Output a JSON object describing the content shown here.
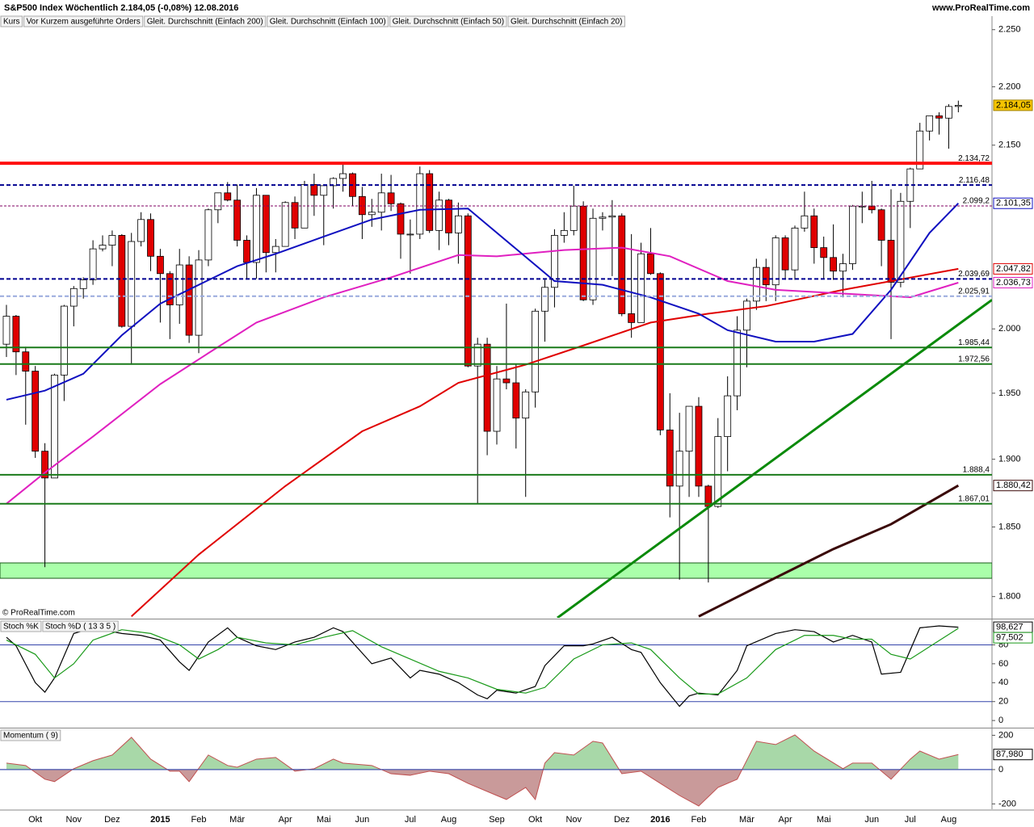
{
  "header": {
    "title": "S&P500 Index  Wöchentlich  2.184,05 (-0,08%)  12.08.2016",
    "site": "www.ProRealTime.com",
    "legend": [
      {
        "label": "Kurs",
        "color": "#1a7a1a"
      },
      {
        "label": "Vor Kurzem ausgeführte Orders",
        "color": "#e05a5a"
      }
    ]
  },
  "copyright": "© ProRealTime.com",
  "chart_data": [
    {
      "type": "candlestick",
      "categories": [
        null,
        null,
        null,
        "Okt",
        null,
        null,
        null,
        "Nov",
        null,
        null,
        null,
        "Dez",
        null,
        null,
        null,
        null,
        "2015",
        null,
        null,
        null,
        "Feb",
        null,
        null,
        null,
        "Mär",
        null,
        null,
        null,
        null,
        "Apr",
        null,
        null,
        null,
        "Mai",
        null,
        null,
        null,
        "Jun",
        null,
        null,
        null,
        null,
        "Jul",
        null,
        null,
        null,
        "Aug",
        null,
        null,
        null,
        null,
        "Sep",
        null,
        null,
        null,
        "Okt",
        null,
        null,
        null,
        "Nov",
        null,
        null,
        null,
        null,
        "Dez",
        null,
        null,
        null,
        "2016",
        null,
        null,
        null,
        "Feb",
        null,
        null,
        null,
        null,
        "Mär",
        null,
        null,
        null,
        "Apr",
        null,
        null,
        null,
        "Mai",
        null,
        null,
        null,
        null,
        "Jun",
        null,
        null,
        null,
        "Jul",
        null,
        null,
        null,
        "Aug",
        null
      ],
      "xlim": [
        -0.67,
        102.5
      ],
      "ylim": [
        1785,
        2262
      ],
      "log_scale": true,
      "yticks": [
        {
          "value": 2250,
          "label": "2.250"
        },
        {
          "value": 2200,
          "label": "2.200"
        },
        {
          "value": 2150,
          "label": "2.150"
        },
        {
          "value": 2000,
          "label": "2.000"
        },
        {
          "value": 1950,
          "label": "1.950"
        },
        {
          "value": 1900,
          "label": "1.900"
        },
        {
          "value": 1850,
          "label": "1.850"
        },
        {
          "value": 1800,
          "label": "1.800"
        }
      ],
      "open": [
        1988,
        2010,
        1982,
        1967,
        1906,
        1886,
        1964,
        2018,
        2032,
        2039,
        2064,
        2067,
        2075,
        2002,
        2070,
        2088,
        2058,
        2044,
        2019,
        2051,
        1995,
        2055,
        2096,
        2110,
        2104,
        2071,
        2053,
        2108,
        2061,
        2066,
        2102,
        2081,
        2117,
        2108,
        2116,
        2122,
        2126,
        2107,
        2092,
        2094,
        2110,
        2101,
        2076,
        2076,
        2126,
        2079,
        2104,
        2077,
        2091,
        1971,
        1988,
        1921,
        1961,
        1958,
        1931,
        1951,
        2014,
        2033,
        2075,
        2079,
        2099,
        2023,
        2089,
        2090,
        2091,
        2012,
        2005,
        2060,
        2044,
        1922,
        1880,
        1906,
        1940,
        1880,
        1865,
        1917,
        1948,
        1999,
        2022,
        2049,
        2035,
        2073,
        2047,
        2081,
        2091,
        2065,
        2057,
        2046,
        2052,
        2099,
        2099,
        2096,
        2071,
        2037,
        2103,
        2130,
        2162,
        2175,
        2173,
        2183
      ],
      "high": [
        2019,
        2011,
        1986,
        1971,
        1912,
        1965,
        2019,
        2034,
        2041,
        2071,
        2075,
        2079,
        2076,
        2077,
        2094,
        2093,
        2064,
        2046,
        2064,
        2058,
        2063,
        2097,
        2110,
        2119,
        2117,
        2075,
        2114,
        2108,
        2072,
        2103,
        2107,
        2120,
        2126,
        2117,
        2123,
        2134,
        2127,
        2115,
        2105,
        2126,
        2125,
        2102,
        2088,
        2132,
        2129,
        2111,
        2105,
        2102,
        2093,
        1993,
        1993,
        1971,
        2020,
        1973,
        1953,
        2016,
        2039,
        2080,
        2094,
        2116,
        2103,
        2097,
        2094,
        2104,
        2093,
        2076,
        2069,
        2081,
        2045,
        1950,
        1935,
        1940,
        1947,
        1881,
        1931,
        1963,
        2010,
        2024,
        2056,
        2056,
        2075,
        2075,
        2083,
        2111,
        2097,
        2074,
        2084,
        2060,
        2100,
        2111,
        2120,
        2097,
        2113,
        2110,
        2131,
        2169,
        2175,
        2178,
        2185,
        2188
      ],
      "low": [
        1978,
        1964,
        1926,
        1901,
        1821,
        1886,
        1944,
        2002,
        2024,
        2035,
        2062,
        2050,
        2001,
        1972,
        2066,
        2046,
        2005,
        1992,
        2004,
        1989,
        1981,
        2050,
        2085,
        2103,
        2066,
        2040,
        2040,
        2045,
        2045,
        2066,
        2072,
        2081,
        2091,
        2067,
        2097,
        2111,
        2099,
        2072,
        2082,
        2079,
        2095,
        2056,
        2044,
        2072,
        2077,
        2063,
        2067,
        2052,
        1970,
        1867,
        1903,
        1911,
        1953,
        1908,
        1872,
        1939,
        1990,
        2017,
        2069,
        2075,
        2022,
        2019,
        2079,
        2042,
        2010,
        1993,
        2005,
        2043,
        1918,
        1857,
        1812,
        1872,
        1872,
        1810,
        1864,
        1891,
        1937,
        1970,
        2015,
        2022,
        2022,
        2039,
        2039,
        2078,
        2052,
        2040,
        2039,
        2025,
        2047,
        2085,
        2093,
        2050,
        1992,
        2033,
        2081,
        2130,
        2154,
        2159,
        2147,
        2178
      ],
      "close": [
        2010,
        1982,
        1967,
        1906,
        1886,
        1964,
        2018,
        2032,
        2039,
        2064,
        2067,
        2075,
        2002,
        2070,
        2088,
        2058,
        2044,
        2019,
        2051,
        1995,
        2055,
        2096,
        2110,
        2104,
        2071,
        2053,
        2108,
        2061,
        2066,
        2102,
        2081,
        2117,
        2108,
        2116,
        2122,
        2126,
        2107,
        2092,
        2094,
        2110,
        2101,
        2076,
        2076,
        2126,
        2079,
        2104,
        2077,
        2091,
        1971,
        1988,
        1921,
        1961,
        1958,
        1931,
        1951,
        2014,
        2033,
        2075,
        2079,
        2099,
        2023,
        2089,
        2090,
        2091,
        2012,
        2005,
        2060,
        2044,
        1922,
        1880,
        1906,
        1940,
        1880,
        1865,
        1917,
        1948,
        1999,
        2022,
        2049,
        2035,
        2073,
        2047,
        2081,
        2091,
        2065,
        2057,
        2046,
        2052,
        2099,
        2099,
        2096,
        2071,
        2037,
        2103,
        2130,
        2162,
        2175,
        2173,
        2183,
        2184
      ],
      "up_color": "#ffffff",
      "down_color": "#e00000",
      "last_label": "2.184,05",
      "last_color": "#f5c400",
      "series": [
        {
          "name": "Gleit. Durchschnitt (Einfach 200)",
          "color": "#3a0808",
          "x": [
            72,
            79,
            86,
            92,
            99
          ],
          "values": [
            1786,
            1810,
            1834,
            1852,
            1880.42
          ],
          "end_label": "1.880,42"
        },
        {
          "name": "Gleit. Durchschnitt (Einfach 100)",
          "color": "#e00000",
          "x": [
            13,
            20,
            29,
            37,
            43,
            47,
            54,
            60,
            67,
            73,
            79,
            87,
            99
          ],
          "values": [
            1786,
            1830,
            1880,
            1921,
            1940,
            1958,
            1972,
            1987,
            2005,
            2012,
            2018,
            2031,
            2047.82
          ],
          "end_label": "2.047,82"
        },
        {
          "name": "Gleit. Durchschnitt (Einfach 50)",
          "color": "#e020c0",
          "x": [
            0,
            4,
            9,
            16,
            21,
            26,
            33,
            40,
            47,
            51,
            58,
            64,
            69,
            75,
            80,
            87,
            94,
            99
          ],
          "values": [
            1867,
            1890,
            1917,
            1957,
            1981,
            2005,
            2025,
            2041,
            2059,
            2058,
            2063,
            2065,
            2058,
            2038,
            2031,
            2028,
            2025,
            2036.73
          ],
          "end_label": "2.036,73"
        },
        {
          "name": "Gleit. Durchschnitt (Einfach 20)",
          "color": "#1010c0",
          "x": [
            0,
            4,
            8,
            12,
            16,
            20,
            24,
            28,
            33,
            38,
            43,
            48,
            53,
            57,
            62,
            67,
            72,
            75,
            80,
            84,
            88,
            92,
            96,
            99
          ],
          "values": [
            1945,
            1952,
            1965,
            1995,
            2020,
            2035,
            2050,
            2060,
            2074,
            2088,
            2096,
            2097,
            2064,
            2038,
            2035,
            2025,
            2012,
            1999,
            1990,
            1990,
            1996,
            2031,
            2077,
            2101.35
          ],
          "end_label": "2.101,35"
        }
      ],
      "levels": [
        {
          "value": 2134.72,
          "label": "2.134,72",
          "color": "#ff1010",
          "style": "thick"
        },
        {
          "value": 2116.48,
          "label": "2.116,48",
          "color": "#000090",
          "style": "dashed"
        },
        {
          "value": 2099.2,
          "label": "2.099,2",
          "color": "#800060",
          "style": "dotted"
        },
        {
          "value": 2039.69,
          "label": "2.039,69",
          "color": "#000090",
          "style": "dashed"
        },
        {
          "value": 2025.91,
          "label": "2.025,91",
          "color": "#99aadd",
          "style": "dashed"
        },
        {
          "value": 1985.44,
          "label": "1.985,44",
          "color": "#1a7a1a",
          "style": "solid"
        },
        {
          "value": 1972.56,
          "label": "1.972,56",
          "color": "#1a7a1a",
          "style": "solid"
        },
        {
          "value": 1888.4,
          "label": "1.888,4",
          "color": "#1a7a1a",
          "style": "solid"
        },
        {
          "value": 1867.01,
          "label": "1.867,01",
          "color": "#1a7a1a",
          "style": "solid"
        }
      ],
      "zones": [
        {
          "from": 1813,
          "to": 1824,
          "color": "#aaffaa"
        }
      ],
      "trendlines": [
        {
          "x": [
            57.3,
            102.5
          ],
          "values": [
            1785,
            2023
          ],
          "color": "#0a8a0a"
        }
      ]
    },
    {
      "type": "line",
      "xlim": [
        -0.67,
        102.5
      ],
      "ylim": [
        -5,
        106
      ],
      "yticks": [
        0,
        20,
        40,
        60,
        80
      ],
      "levels": [
        {
          "value": 80,
          "color": "#3344aa"
        },
        {
          "value": 20,
          "color": "#3344aa"
        }
      ],
      "series": [
        {
          "name": "Stoch %K",
          "color": "#000000",
          "x": [
            0,
            1,
            3,
            4,
            5,
            7,
            9,
            12,
            14,
            16,
            18,
            19,
            21,
            23,
            24,
            26,
            28,
            30,
            32,
            34,
            35,
            38,
            40,
            42,
            43,
            45,
            47,
            49,
            50,
            51,
            53,
            55,
            56,
            58,
            60,
            61,
            63,
            65,
            66,
            68,
            70,
            71,
            72,
            74,
            76,
            77,
            80,
            82,
            84,
            86,
            88,
            90,
            91,
            93,
            95,
            97,
            99
          ],
          "values": [
            88,
            79,
            40,
            30,
            45,
            92,
            98,
            92,
            90,
            85,
            62,
            53,
            83,
            98,
            88,
            79,
            75,
            83,
            88,
            98,
            94,
            60,
            66,
            45,
            53,
            49,
            40,
            27,
            23,
            32,
            29,
            36,
            58,
            79,
            79,
            81,
            88,
            75,
            72,
            40,
            15,
            26,
            29,
            27,
            53,
            79,
            92,
            96,
            94,
            83,
            90,
            83,
            49,
            51,
            98,
            100,
            98.627
          ],
          "end_label": "98,627"
        },
        {
          "name": "Stoch %D ( 13 3 5 )",
          "color": "#1a9a1a",
          "x": [
            0,
            3,
            5,
            7,
            9,
            12,
            15,
            18,
            20,
            22,
            24,
            27,
            30,
            33,
            36,
            39,
            42,
            45,
            48,
            51,
            54,
            56,
            59,
            62,
            65,
            67,
            70,
            72,
            74,
            77,
            80,
            83,
            86,
            88,
            90,
            92,
            94,
            96,
            99
          ],
          "values": [
            85,
            70,
            45,
            60,
            85,
            96,
            92,
            80,
            65,
            75,
            88,
            82,
            80,
            88,
            95,
            78,
            65,
            52,
            45,
            33,
            29,
            35,
            65,
            80,
            82,
            75,
            45,
            28,
            28,
            45,
            75,
            90,
            90,
            86,
            86,
            70,
            65,
            78,
            97.502
          ],
          "end_label": "97,502"
        }
      ]
    },
    {
      "type": "area",
      "title": "Momentum ( 9)",
      "xlim": [
        -0.67,
        102.5
      ],
      "ylim": [
        -231,
        235
      ],
      "yticks": [
        -200,
        0,
        200
      ],
      "levels": [
        {
          "value": 0,
          "color": "#3344aa"
        }
      ],
      "x": [
        0,
        2,
        4,
        5,
        7,
        9,
        11,
        13,
        15,
        17,
        18,
        19,
        21,
        23,
        24,
        26,
        28,
        30,
        32,
        34,
        35,
        38,
        40,
        42,
        44,
        46,
        48,
        51,
        52,
        54,
        55,
        56,
        57,
        59,
        61,
        62,
        64,
        66,
        68,
        70,
        72,
        74,
        76,
        78,
        80,
        82,
        84,
        87,
        88,
        90,
        92,
        94,
        95,
        97,
        99
      ],
      "values": [
        38,
        24,
        -56,
        -70,
        5,
        52,
        85,
        188,
        61,
        -9,
        -9,
        -70,
        85,
        24,
        14,
        61,
        71,
        -9,
        5,
        61,
        38,
        24,
        -24,
        -33,
        -9,
        -24,
        -80,
        -151,
        -174,
        -104,
        -174,
        38,
        99,
        85,
        165,
        155,
        -24,
        -9,
        -80,
        -151,
        -212,
        -104,
        -56,
        165,
        146,
        202,
        108,
        5,
        38,
        38,
        -56,
        61,
        108,
        61,
        87.98
      ],
      "end_label": "87,980",
      "pos_color": "#a8d8a8",
      "neg_color": "#c99a9a",
      "line_color": "#c05050"
    }
  ]
}
